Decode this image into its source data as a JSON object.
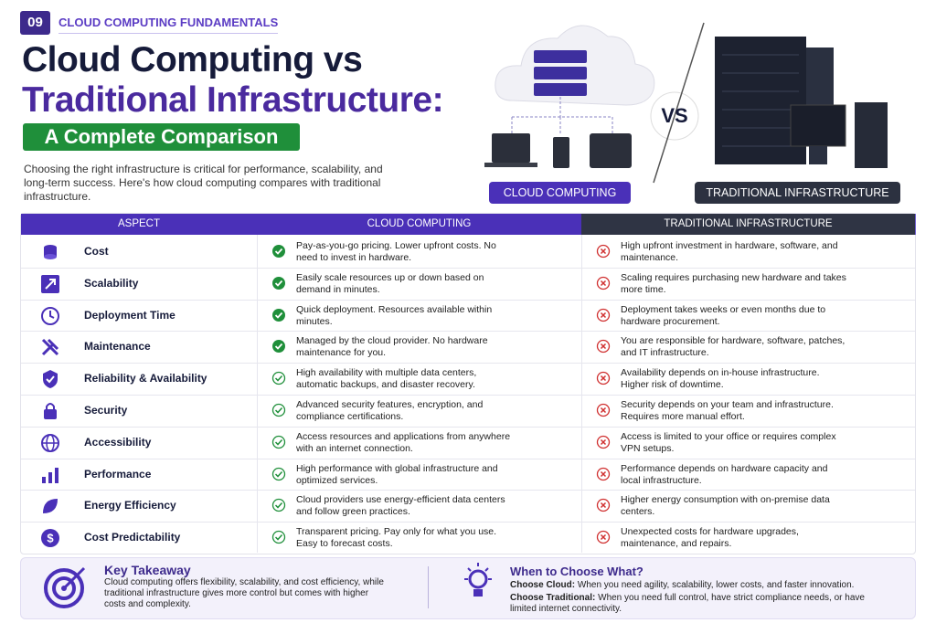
{
  "header": {
    "badge": "09",
    "kicker": "CLOUD COMPUTING FUNDAMENTALS",
    "title_line1": "Cloud Computing vs",
    "title_line2": "Traditional Infrastructure:",
    "subtitle": "A Complete Comparison",
    "intro": "Choosing the right infrastructure is critical for performance, scalability, and long-term success. Here's how cloud computing compares with traditional infrastructure."
  },
  "hero": {
    "vs": "VS",
    "cloud_label": "CLOUD COMPUTING",
    "traditional_label": "TRADITIONAL INFRASTRUCTURE"
  },
  "table": {
    "columns": [
      "ASPECT",
      "CLOUD COMPUTING",
      "TRADITIONAL INFRASTRUCTURE"
    ],
    "rows": [
      [
        "Cost",
        "Pay-as-you-go pricing. Lower upfront costs. No need to invest in hardware.",
        "High upfront investment in hardware, software, and maintenance."
      ],
      [
        "Scalability",
        "Easily scale resources up or down based on demand in minutes.",
        "Scaling requires purchasing new hardware and takes more time."
      ],
      [
        "Deployment Time",
        "Quick deployment. Resources available within minutes.",
        "Deployment takes weeks or even months due to hardware procurement."
      ],
      [
        "Maintenance",
        "Managed by the cloud provider. No hardware maintenance for you.",
        "You are responsible for hardware, software, patches, and IT infrastructure."
      ],
      [
        "Reliability & Availability",
        "High availability with multiple data centers, automatic backups, and disaster recovery.",
        "Availability depends on in-house infrastructure. Higher risk of downtime."
      ],
      [
        "Security",
        "Advanced security features, encryption, and compliance certifications.",
        "Security depends on your team and infrastructure. Requires more manual effort."
      ],
      [
        "Accessibility",
        "Access resources and applications from anywhere with an internet connection.",
        "Access is limited to your office or requires complex VPN setups."
      ],
      [
        "Performance",
        "High performance with global infrastructure and optimized services.",
        "Performance depends on hardware capacity and local infrastructure."
      ],
      [
        "Energy Efficiency",
        "Cloud providers use energy-efficient data centers and follow green practices.",
        "Higher energy consumption with on-premise data centers."
      ],
      [
        "Cost Predictability",
        "Transparent pricing. Pay only for what you use. Easy to forecast costs.",
        "Unexpected costs for hardware upgrades, maintenance, and repairs."
      ]
    ]
  },
  "footer": {
    "takeaway_title": "Key Takeaway",
    "takeaway_text": "Cloud computing offers flexibility, scalability, and cost efficiency, while traditional infrastructure gives more control but comes with higher costs and complexity.",
    "when_title": "When to Choose What?",
    "cloud_label": "Choose Cloud:",
    "cloud_text": "When you need agility, scalability, lower costs, and faster innovation.",
    "trad_label": "Choose Traditional:",
    "trad_text": "When you need full control, have strict compliance needs, or have limited internet connectivity."
  }
}
